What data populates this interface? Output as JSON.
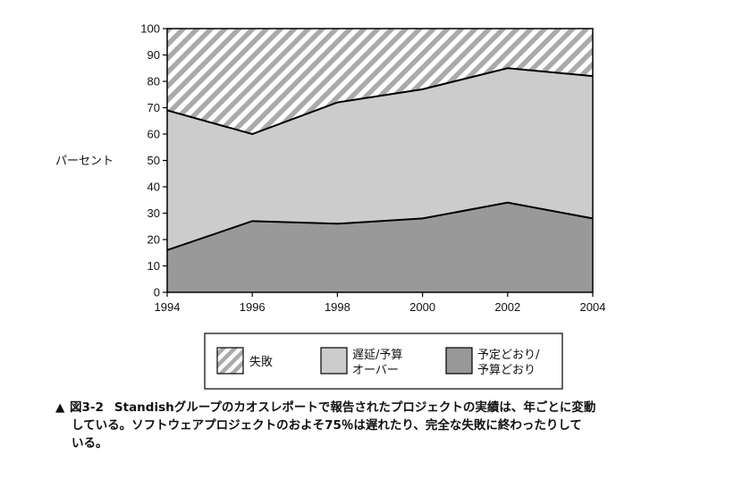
{
  "chart_data": {
    "type": "area",
    "stacked": true,
    "x": [
      1994,
      1996,
      1998,
      2000,
      2002,
      2004
    ],
    "ylabel": "パーセント",
    "ylim": [
      0,
      100
    ],
    "yticks": [
      0,
      10,
      20,
      30,
      40,
      50,
      60,
      70,
      80,
      90,
      100
    ],
    "grid": false,
    "legend_position": "bottom",
    "series": [
      {
        "name": "予定どおり/予算どおり",
        "name_lines": [
          "予定どおり/",
          "予算どおり"
        ],
        "values": [
          16,
          27,
          26,
          28,
          34,
          28
        ],
        "fill": "#999999",
        "pattern": "solid"
      },
      {
        "name": "遅延/予算オーバー",
        "name_lines": [
          "遅延/予算",
          "オーバー"
        ],
        "values": [
          53,
          33,
          46,
          49,
          51,
          54
        ],
        "fill": "#cccccc",
        "pattern": "solid"
      },
      {
        "name": "失敗",
        "name_lines": [
          "失敗"
        ],
        "values": [
          31,
          40,
          28,
          23,
          15,
          18
        ],
        "fill": "#aaaaaa",
        "pattern": "hatch"
      }
    ]
  },
  "caption": {
    "marker": "▲",
    "figure_number": "図3-2",
    "line1": "Standishグループのカオスレポートで報告されたプロジェクトの実績は、年ごとに変動",
    "line2": "している。ソフトウェアプロジェクトのおよそ75％は遅れたり、完全な失敗に終わったりして",
    "line3": "いる。"
  }
}
